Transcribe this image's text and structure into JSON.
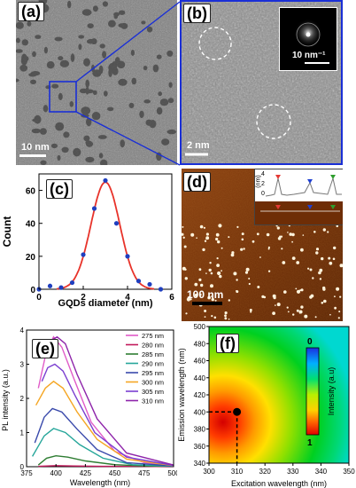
{
  "figure": {
    "panel_a": {
      "label": "(a)",
      "scale": "10 nm"
    },
    "panel_b": {
      "label": "(b)",
      "scale": "2 nm",
      "inset_scale": "10 nm⁻¹"
    },
    "panel_c": {
      "label": "(c)",
      "xlabel": "GQDs diameter (nm)",
      "ylabel": "Count",
      "xticks": [
        "0",
        "2",
        "4",
        "6"
      ],
      "yticks": [
        "0",
        "20",
        "40",
        "60"
      ]
    },
    "panel_d": {
      "label": "(d)",
      "scale": "100 nm",
      "inset_ylabel": "(nm)",
      "inset_yticks": [
        "0",
        "2",
        "4"
      ]
    },
    "panel_e": {
      "label": "(e)",
      "xlabel": "Wavelength (nm)",
      "ylabel": "PL intensity (a.u.)",
      "xticks": [
        "375",
        "400",
        "425",
        "450",
        "475",
        "500"
      ],
      "yticks": [
        "0",
        "1",
        "2",
        "3",
        "4"
      ]
    },
    "panel_f": {
      "label": "(f)",
      "xlabel": "Excitation wavelength (nm)",
      "ylabel": "Emission wavelength (nm)",
      "xticks": [
        "300",
        "310",
        "320",
        "330",
        "340",
        "350"
      ],
      "yticks": [
        "340",
        "360",
        "380",
        "400",
        "420",
        "440",
        "460",
        "480",
        "500"
      ],
      "colorbar_label": "Intensity (a.u)",
      "colorbar_top": "0",
      "colorbar_bottom": "1"
    }
  },
  "chart_data": [
    {
      "type": "bar",
      "panel": "(c)",
      "xlabel": "GQDs diameter (nm)",
      "ylabel": "Count",
      "xlim": [
        0,
        6
      ],
      "ylim": [
        0,
        70
      ],
      "points": [
        {
          "x": 0.0,
          "y": 0
        },
        {
          "x": 0.5,
          "y": 2
        },
        {
          "x": 1.0,
          "y": 1
        },
        {
          "x": 1.5,
          "y": 4
        },
        {
          "x": 2.0,
          "y": 21
        },
        {
          "x": 2.5,
          "y": 49
        },
        {
          "x": 3.0,
          "y": 66
        },
        {
          "x": 3.5,
          "y": 40
        },
        {
          "x": 4.0,
          "y": 20
        },
        {
          "x": 4.5,
          "y": 5
        },
        {
          "x": 5.0,
          "y": 3
        },
        {
          "x": 5.5,
          "y": 0
        }
      ],
      "fit": {
        "type": "gaussian",
        "amplitude": 65,
        "center": 3.0,
        "sigma": 0.65
      },
      "colors": {
        "points": "#1f3fbf",
        "fit": "#e8332a"
      }
    },
    {
      "type": "line",
      "panel": "(e)",
      "xlabel": "Wavelength (nm)",
      "ylabel": "PL intensity (a.u.)",
      "xlim": [
        375,
        500
      ],
      "ylim": [
        0,
        4
      ],
      "series": [
        {
          "name": "275 nm",
          "color": "#e05ac8",
          "x": [
            385,
            392,
            398,
            405,
            415,
            430,
            450,
            475,
            500
          ],
          "values": [
            2.3,
            3.4,
            3.8,
            3.5,
            2.6,
            1.3,
            0.45,
            0.12,
            0.03
          ]
        },
        {
          "name": "280 nm",
          "color": "#c2185b",
          "x": [
            385,
            400,
            415,
            440,
            470,
            500
          ],
          "values": [
            0.01,
            0.03,
            0.02,
            0.01,
            0.01,
            0.0
          ]
        },
        {
          "name": "285 nm",
          "color": "#2e7d32",
          "x": [
            385,
            392,
            400,
            410,
            425,
            450,
            475,
            500
          ],
          "values": [
            0.05,
            0.25,
            0.32,
            0.28,
            0.17,
            0.06,
            0.02,
            0.01
          ]
        },
        {
          "name": "290 nm",
          "color": "#26a69a",
          "x": [
            380,
            390,
            398,
            408,
            420,
            440,
            465,
            500
          ],
          "values": [
            0.3,
            0.9,
            1.12,
            1.0,
            0.65,
            0.25,
            0.06,
            0.01
          ]
        },
        {
          "name": "295 nm",
          "color": "#3949ab",
          "x": [
            382,
            390,
            397,
            405,
            418,
            435,
            460,
            500
          ],
          "values": [
            0.7,
            1.45,
            1.7,
            1.6,
            1.1,
            0.5,
            0.12,
            0.02
          ]
        },
        {
          "name": "300 nm",
          "color": "#f5a623",
          "x": [
            383,
            391,
            398,
            406,
            418,
            435,
            460,
            500
          ],
          "values": [
            1.8,
            2.3,
            2.5,
            2.3,
            1.6,
            0.8,
            0.22,
            0.03
          ]
        },
        {
          "name": "305 nm",
          "color": "#7b3fd0",
          "x": [
            388,
            393,
            399,
            406,
            416,
            433,
            460,
            500
          ],
          "values": [
            2.5,
            2.9,
            3.0,
            2.8,
            2.1,
            1.0,
            0.28,
            0.04
          ]
        },
        {
          "name": "310 nm",
          "color": "#8e24aa",
          "x": [
            392,
            396,
            401,
            408,
            418,
            435,
            460,
            500
          ],
          "values": [
            3.2,
            3.7,
            3.8,
            3.6,
            2.7,
            1.4,
            0.4,
            0.05
          ]
        }
      ]
    },
    {
      "type": "heatmap",
      "panel": "(f)",
      "xlabel": "Excitation wavelength (nm)",
      "ylabel": "Emission wavelength (nm)",
      "xlim": [
        300,
        350
      ],
      "ylim": [
        340,
        500
      ],
      "peak": {
        "x": 310,
        "y": 400
      },
      "colorbar": {
        "label": "Intensity (a.u)",
        "top": "0",
        "bottom": "1"
      }
    }
  ]
}
